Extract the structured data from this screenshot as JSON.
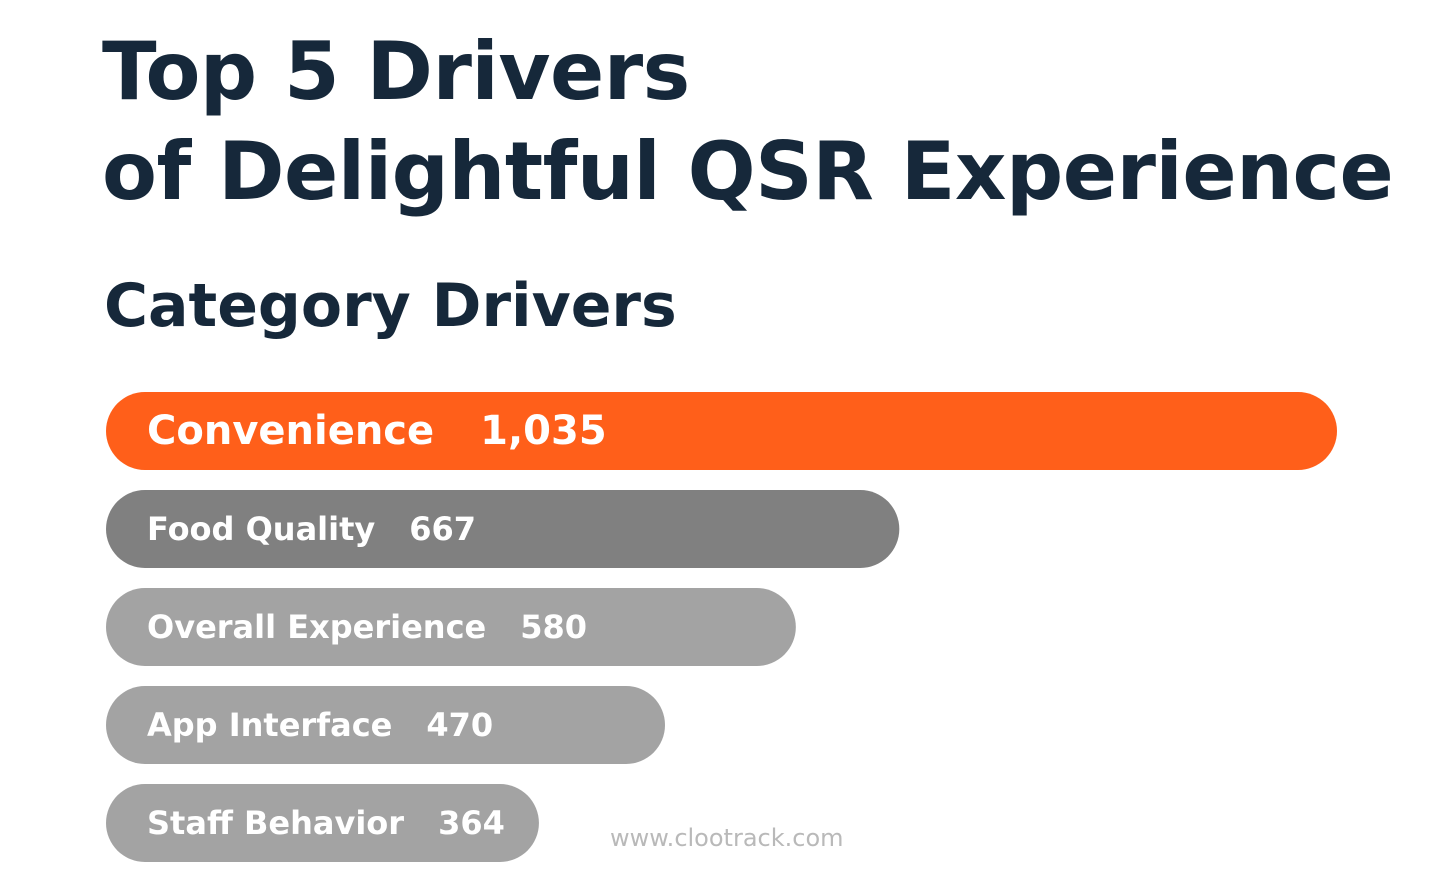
{
  "header": {
    "title_line1": "Top 5 Drivers",
    "title_line2": "of Delightful QSR Experience",
    "subtitle": "Category Drivers"
  },
  "watermark": "www.clootrack.com",
  "chart_data": {
    "type": "bar",
    "orientation": "horizontal",
    "categories": [
      "Convenience",
      "Food Quality",
      "Overall Experience",
      "App Interface",
      "Staff Behavior"
    ],
    "values": [
      1035,
      667,
      580,
      470,
      364
    ],
    "value_labels": [
      "1,035",
      "667",
      "580",
      "470",
      "364"
    ],
    "colors": [
      "#ff5f1a",
      "#808080",
      "#a3a3a3",
      "#a3a3a3",
      "#a3a3a3"
    ],
    "grid": false,
    "legend": "none"
  }
}
